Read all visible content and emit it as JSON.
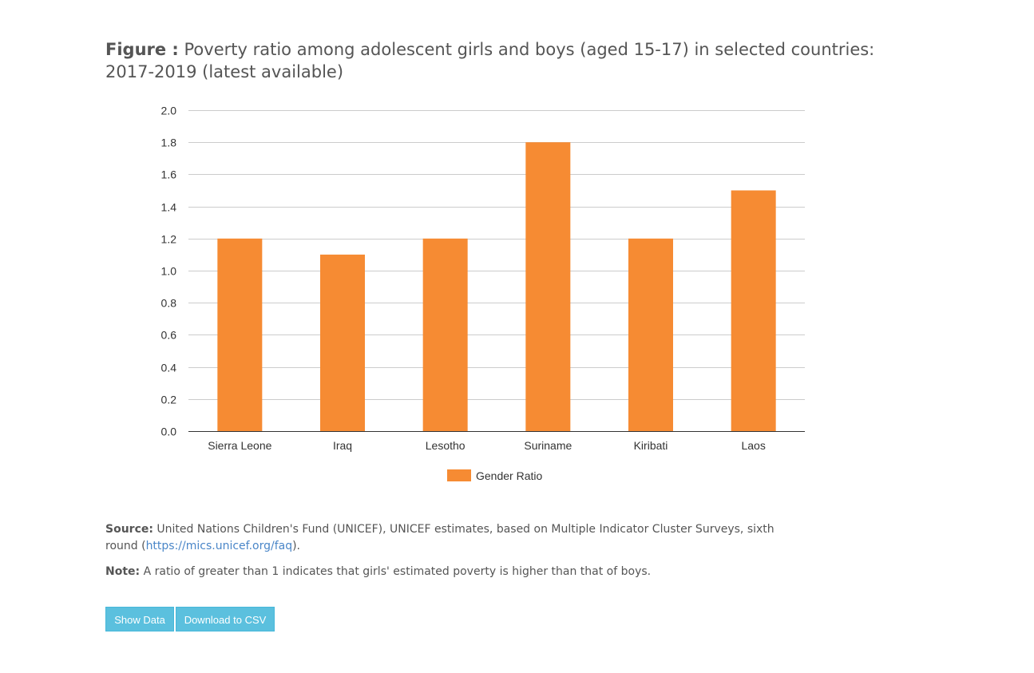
{
  "title": {
    "prefix": "Figure :",
    "text": " Poverty ratio among adolescent girls and boys (aged 15-17) in selected countries: 2017-2019 (latest available)"
  },
  "chart_data": {
    "type": "bar",
    "categories": [
      "Sierra Leone",
      "Iraq",
      "Lesotho",
      "Suriname",
      "Kiribati",
      "Laos"
    ],
    "series": [
      {
        "name": "Gender Ratio",
        "values": [
          1.2,
          1.1,
          1.2,
          1.8,
          1.2,
          1.5
        ],
        "color": "#f68b33"
      }
    ],
    "yticks": [
      "0.0",
      "0.2",
      "0.4",
      "0.6",
      "0.8",
      "1.0",
      "1.2",
      "1.4",
      "1.6",
      "1.8",
      "2.0"
    ],
    "ylim": [
      0,
      2.0
    ],
    "grid": true,
    "legend_position": "bottom"
  },
  "notes": {
    "source_label": "Source:",
    "source_text": " United Nations Children's Fund (UNICEF), UNICEF estimates, based on Multiple Indicator Cluster Surveys, sixth round (",
    "source_link": "https://mics.unicef.org/faq",
    "source_end": ").",
    "note_label": "Note:",
    "note_text": " A ratio of greater than 1 indicates that girls' estimated poverty is higher than that of boys."
  },
  "buttons": {
    "show_data": "Show Data",
    "download_csv": "Download to CSV"
  },
  "colors": {
    "bar": "#f68b33",
    "grid": "#cccccc",
    "button": "#5bc0de",
    "link": "#4a86c8"
  }
}
